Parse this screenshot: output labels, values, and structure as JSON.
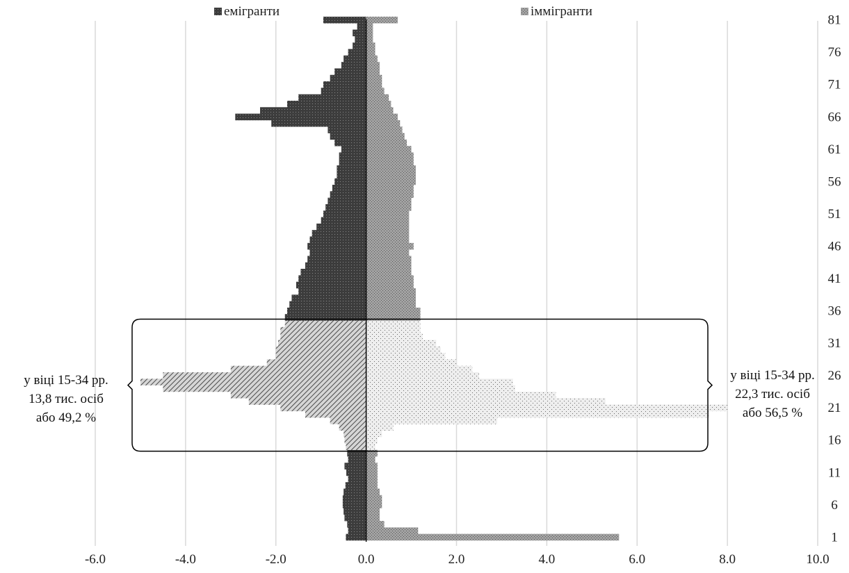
{
  "colors": {
    "emigrants": "#3c3c3c",
    "immigrants": "#9a9a9a",
    "grid": "#d9d9d9",
    "axis": "#000000"
  },
  "chart_data": {
    "type": "bar",
    "orientation": "horizontal-population-pyramid",
    "title": "",
    "xlabel": "",
    "ylabel": "",
    "xlim": [
      -6.0,
      10.0
    ],
    "x_ticks": [
      "-6.0",
      "-4.0",
      "-2.0",
      "0.0",
      "2.0",
      "4.0",
      "6.0",
      "8.0",
      "10.0"
    ],
    "x_tick_values": [
      -6,
      -4,
      -2,
      0,
      2,
      4,
      6,
      8,
      10
    ],
    "y_ticks": [
      "81",
      "76",
      "71",
      "66",
      "61",
      "56",
      "51",
      "46",
      "41",
      "36",
      "31",
      "26",
      "21",
      "16",
      "11",
      "6",
      "1"
    ],
    "y_tick_values": [
      81,
      76,
      71,
      66,
      61,
      56,
      51,
      46,
      41,
      36,
      31,
      26,
      21,
      16,
      11,
      6,
      1
    ],
    "grid": "vertical",
    "legend_position": "top",
    "ages": [
      1,
      2,
      3,
      4,
      5,
      6,
      7,
      8,
      9,
      10,
      11,
      12,
      13,
      14,
      15,
      16,
      17,
      18,
      19,
      20,
      21,
      22,
      23,
      24,
      25,
      26,
      27,
      28,
      29,
      30,
      31,
      32,
      33,
      34,
      35,
      36,
      37,
      38,
      39,
      40,
      41,
      42,
      43,
      44,
      45,
      46,
      47,
      48,
      49,
      50,
      51,
      52,
      53,
      54,
      55,
      56,
      57,
      58,
      59,
      60,
      61,
      62,
      63,
      64,
      65,
      66,
      67,
      68,
      69,
      70,
      71,
      72,
      73,
      74,
      75,
      76,
      77,
      78,
      79,
      80,
      81
    ],
    "series": [
      {
        "name": "емігранти",
        "values": [
          -0.45,
          -0.4,
          -0.42,
          -0.48,
          -0.5,
          -0.52,
          -0.52,
          -0.5,
          -0.46,
          -0.4,
          -0.44,
          -0.48,
          -0.4,
          -0.42,
          -0.45,
          -0.48,
          -0.5,
          -0.6,
          -0.8,
          -1.35,
          -1.9,
          -2.6,
          -3.0,
          -4.5,
          -5.0,
          -4.5,
          -3.0,
          -2.2,
          -2.0,
          -2.0,
          -1.95,
          -1.9,
          -1.9,
          -1.8,
          -1.8,
          -1.75,
          -1.7,
          -1.65,
          -1.5,
          -1.55,
          -1.5,
          -1.45,
          -1.35,
          -1.3,
          -1.25,
          -1.3,
          -1.25,
          -1.2,
          -1.1,
          -1.0,
          -0.95,
          -0.9,
          -0.85,
          -0.8,
          -0.75,
          -0.7,
          -0.65,
          -0.65,
          -0.6,
          -0.6,
          -0.55,
          -0.7,
          -0.8,
          -0.85,
          -2.1,
          -2.9,
          -2.35,
          -1.75,
          -1.5,
          -1.0,
          -0.95,
          -0.8,
          -0.7,
          -0.55,
          -0.5,
          -0.4,
          -0.3,
          -0.25,
          -0.3,
          -0.2,
          -0.95
        ]
      },
      {
        "name": "іммігранти",
        "values": [
          5.6,
          1.15,
          0.4,
          0.3,
          0.3,
          0.35,
          0.35,
          0.3,
          0.25,
          0.25,
          0.25,
          0.25,
          0.2,
          0.25,
          0.2,
          0.25,
          0.35,
          0.6,
          2.9,
          7.6,
          8.0,
          5.3,
          4.2,
          3.3,
          3.25,
          2.5,
          2.35,
          2.0,
          1.75,
          1.65,
          1.55,
          1.25,
          1.2,
          1.2,
          1.2,
          1.2,
          1.1,
          1.1,
          1.1,
          1.05,
          1.05,
          1.0,
          1.0,
          1.0,
          0.95,
          1.05,
          0.95,
          0.95,
          0.95,
          0.95,
          0.95,
          1.0,
          1.0,
          1.05,
          1.05,
          1.1,
          1.1,
          1.1,
          1.05,
          1.05,
          1.0,
          0.9,
          0.85,
          0.8,
          0.75,
          0.7,
          0.6,
          0.55,
          0.5,
          0.4,
          0.35,
          0.35,
          0.3,
          0.3,
          0.25,
          0.2,
          0.2,
          0.15,
          0.15,
          0.15,
          0.7
        ]
      }
    ],
    "annotations": [
      {
        "side": "left",
        "lines": [
          "у віці 15-34 рр.",
          "13,8 тис. осіб",
          "або 49,2 %"
        ]
      },
      {
        "side": "right",
        "lines": [
          "у віці 15-34 рр.",
          "22,3 тис. осіб",
          "або 56,5 %"
        ]
      }
    ],
    "highlight_age_range": [
      15,
      34
    ]
  }
}
